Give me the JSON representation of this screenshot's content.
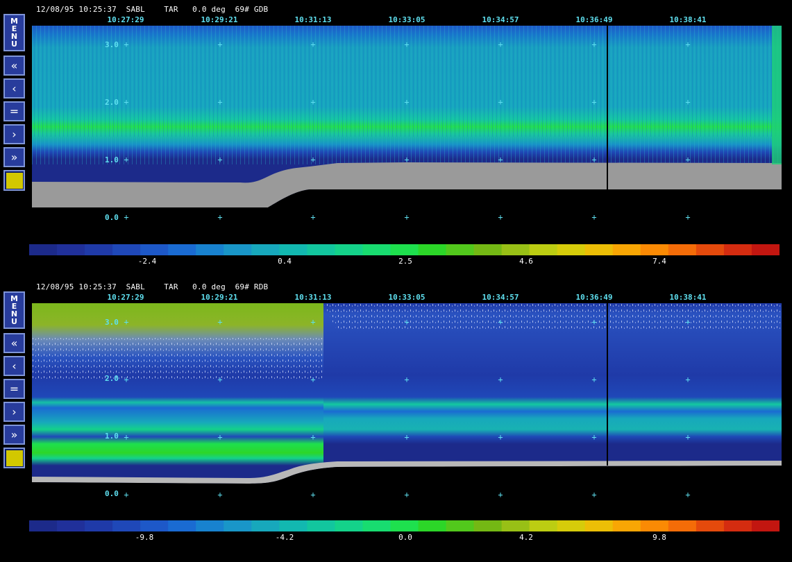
{
  "colors": {
    "cursor_line": "#000000",
    "grid_plus": "#5fe0f0",
    "ground": "#9a9a9a"
  },
  "times": [
    "10:27:29",
    "10:29:21",
    "10:31:13",
    "10:33:05",
    "10:34:57",
    "10:36:49",
    "10:38:41"
  ],
  "palette": [
    "#1c2a8a",
    "#20309a",
    "#1f3aa8",
    "#1f48b8",
    "#1d58c8",
    "#1a6bd2",
    "#1882cf",
    "#1996c8",
    "#17a8bc",
    "#12b8b0",
    "#12c69e",
    "#14d28a",
    "#18dc70",
    "#1ee04e",
    "#2cd628",
    "#52c81c",
    "#74b814",
    "#98c016",
    "#bccd12",
    "#d6cc0a",
    "#ecbe06",
    "#f8a604",
    "#fa8a04",
    "#f46c08",
    "#e44a0c",
    "#d42c10",
    "#c21610"
  ],
  "top_panel": {
    "status": {
      "date_time": "12/08/95 10:25:37",
      "site": "SABL",
      "mode": "TAR",
      "angle": "0.0 deg",
      "file": "69# GDB"
    },
    "menu_label": "MENU",
    "y_ticks": [
      "3.0",
      "2.0",
      "1.0",
      "0.0"
    ],
    "colorbar_ticks": [
      "-2.4",
      "0.4",
      "2.5",
      "4.6",
      "7.4"
    ]
  },
  "bottom_panel": {
    "status": {
      "date_time": "12/08/95 10:25:37",
      "site": "SABL",
      "mode": "TAR",
      "angle": "0.0 deg",
      "file": "69# RDB"
    },
    "menu_label": "MENU",
    "y_ticks": [
      "3.0",
      "2.0",
      "1.0",
      "0.0"
    ],
    "colorbar_ticks": [
      "-9.8",
      "-4.2",
      "0.0",
      "4.2",
      "9.8"
    ]
  }
}
